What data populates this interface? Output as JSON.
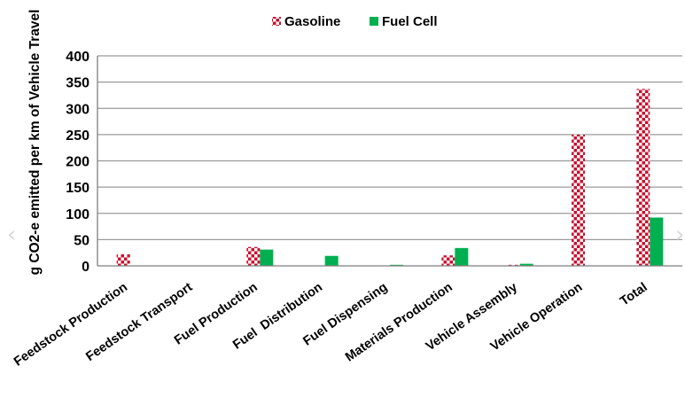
{
  "chart_data": {
    "type": "bar",
    "ylabel": "g CO2-e emitted per km of Vehicle Travel",
    "xlabel": "",
    "ylim": [
      0,
      400
    ],
    "yticks": [
      0,
      50,
      100,
      150,
      200,
      250,
      300,
      350,
      400
    ],
    "grid": true,
    "legend_position": "top-center",
    "categories": [
      "Feedstock Production",
      "Feedstock Transport",
      "Fuel Production",
      "Fuel  Distribution",
      "Fuel Dispensing",
      "Materials Production",
      "Vehicle Assembly",
      "Vehicle Operation",
      "Total"
    ],
    "series": [
      {
        "name": "Gasoline",
        "color": "#c8102e",
        "pattern": "checker",
        "values": [
          22,
          0,
          36,
          0,
          0,
          20,
          2,
          250,
          337
        ]
      },
      {
        "name": "Fuel Cell",
        "color": "#00b050",
        "pattern": "solid",
        "values": [
          0,
          0,
          31,
          19,
          2,
          34,
          4,
          0,
          92
        ]
      }
    ]
  },
  "nav": {
    "prev_icon": "chevron-left-icon",
    "next_icon": "chevron-right-icon"
  }
}
